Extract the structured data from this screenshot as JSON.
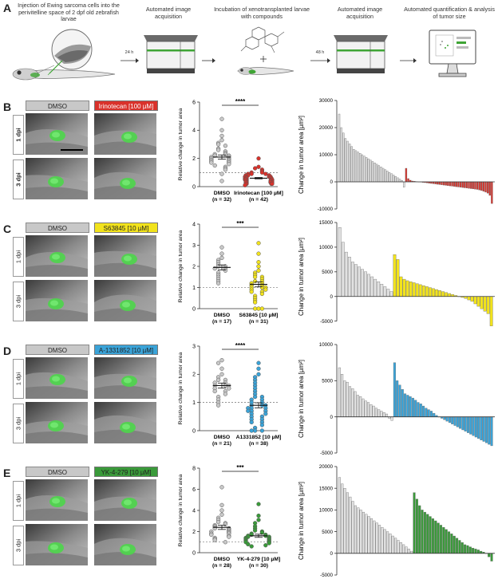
{
  "workflow": {
    "letter": "A",
    "step1": "Injection of Ewing sarcoma cells into the perivitelline space of 2 dpf old zebrafish larvae",
    "step2": "Automated image acquisition",
    "step3": "Incubation of xenotransplanted larvae with compounds",
    "step4": "Automated image acquisition",
    "step5": "Automated quantification & analysis of tumor size",
    "arrow1": "24 h",
    "arrow2": "48 h"
  },
  "colors": {
    "green": "#3fa535",
    "dmso_fill": "#c8c8c8",
    "irinotecan": "#d9322b",
    "s63845": "#f2e31c",
    "a1331852": "#3aa3d8",
    "yk": "#3a9a3a"
  },
  "panels": [
    {
      "letter": "B",
      "control_label": "DMSO",
      "treatment_label": "Irinotecan [100 µM]",
      "row1_label": "1 dpi",
      "row2_label": "3 dpi",
      "bold_rows": true,
      "color": "#d9322b",
      "scatter": {
        "ylabel": "Relative change in tumor area",
        "ymax": 6,
        "yticks": [
          0,
          2,
          4,
          6
        ],
        "sig": "****",
        "group1_name": "DMSO",
        "group1_n": "(n = 32)",
        "group2_name": "Irinotecan [100 µM]",
        "group2_n": "(n = 42)",
        "group1_values": [
          4.8,
          4.0,
          3.6,
          3.3,
          3.1,
          3.0,
          2.9,
          2.7,
          2.6,
          2.5,
          2.4,
          2.3,
          2.3,
          2.2,
          2.2,
          2.1,
          2.1,
          2.0,
          2.0,
          1.9,
          1.9,
          1.8,
          1.8,
          1.7,
          1.7,
          1.6,
          1.5,
          1.4,
          1.3,
          1.2,
          0.9,
          0.4
        ],
        "group2_values": [
          2.0,
          1.4,
          1.3,
          1.2,
          1.1,
          1.0,
          1.0,
          0.9,
          0.9,
          0.9,
          0.8,
          0.8,
          0.8,
          0.7,
          0.7,
          0.7,
          0.7,
          0.6,
          0.6,
          0.6,
          0.6,
          0.6,
          0.5,
          0.5,
          0.5,
          0.5,
          0.5,
          0.4,
          0.4,
          0.4,
          0.4,
          0.4,
          0.3,
          0.3,
          0.3,
          0.3,
          0.3,
          0.2,
          0.2,
          0.2,
          0.2,
          0.1
        ],
        "group1_mean": 2.1,
        "group1_sem": 0.15,
        "group2_mean": 0.6,
        "group2_sem": 0.05
      },
      "waterfall": {
        "ylabel": "Change in tumor area [µm²]",
        "yticks": [
          30000,
          20000,
          10000,
          0,
          -10000
        ],
        "ymin": -10000,
        "ymax": 30000,
        "control_values": [
          25000,
          20000,
          18000,
          16000,
          15000,
          14000,
          13000,
          12000,
          11500,
          11000,
          10500,
          10000,
          9500,
          9000,
          8500,
          8000,
          7500,
          7000,
          6500,
          6000,
          5500,
          5000,
          4500,
          4000,
          3500,
          3000,
          2500,
          2000,
          1500,
          1000,
          500,
          -2000
        ],
        "treatment_values": [
          5000,
          1200,
          600,
          300,
          200,
          100,
          0,
          -100,
          -200,
          -300,
          -400,
          -500,
          -600,
          -700,
          -800,
          -900,
          -1000,
          -1100,
          -1200,
          -1300,
          -1400,
          -1500,
          -1600,
          -1700,
          -1800,
          -1900,
          -2000,
          -2100,
          -2200,
          -2300,
          -2400,
          -2500,
          -2600,
          -2700,
          -2800,
          -3000,
          -3200,
          -3500,
          -3800,
          -4200,
          -5000,
          -8000
        ]
      }
    },
    {
      "letter": "C",
      "control_label": "DMSO",
      "treatment_label": "S63845 [10 µM]",
      "row1_label": "1 dpi",
      "row2_label": "3 dpi",
      "bold_rows": false,
      "color": "#f2e31c",
      "scatter": {
        "ylabel": "Relative change in tumor area",
        "ymax": 4,
        "yticks": [
          0,
          1,
          2,
          3,
          4
        ],
        "sig": "***",
        "group1_name": "DMSO",
        "group1_n": "(n = 17)",
        "group2_name": "S63845 [10 µM]",
        "group2_n": "(n = 31)",
        "group1_values": [
          2.9,
          2.6,
          2.4,
          2.3,
          2.2,
          2.1,
          2.0,
          2.0,
          1.9,
          1.9,
          1.8,
          1.7,
          1.6,
          1.5,
          1.4,
          1.3,
          1.2
        ],
        "group2_values": [
          3.1,
          2.6,
          2.2,
          2.0,
          1.8,
          1.7,
          1.6,
          1.5,
          1.5,
          1.4,
          1.3,
          1.3,
          1.2,
          1.2,
          1.1,
          1.1,
          1.0,
          1.0,
          1.0,
          0.9,
          0.9,
          0.8,
          0.8,
          0.7,
          0.6,
          0.5,
          0.4,
          0.3,
          0.0,
          0.0,
          0.0
        ],
        "group1_mean": 1.95,
        "group1_sem": 0.12,
        "group2_mean": 1.15,
        "group2_sem": 0.12
      },
      "waterfall": {
        "ylabel": "Change in tumor area [µm²]",
        "yticks": [
          15000,
          10000,
          5000,
          0,
          -5000
        ],
        "ymin": -7000,
        "ymax": 15000,
        "control_values": [
          14000,
          11000,
          9000,
          8000,
          7000,
          6500,
          6000,
          5500,
          5000,
          4500,
          4000,
          3500,
          3000,
          2500,
          2000,
          1500,
          1000
        ],
        "treatment_values": [
          8500,
          7500,
          4000,
          3500,
          3200,
          3000,
          2800,
          2600,
          2400,
          2200,
          2000,
          1800,
          1600,
          1400,
          1200,
          1000,
          800,
          600,
          400,
          200,
          0,
          -200,
          -400,
          -700,
          -1000,
          -1500,
          -2000,
          -2500,
          -3000,
          -3500,
          -6000
        ]
      }
    },
    {
      "letter": "D",
      "control_label": "DMSO",
      "treatment_label": "A-1331852 [10 µM]",
      "row1_label": "1 dpi",
      "row2_label": "3 dpi",
      "bold_rows": false,
      "color": "#3aa3d8",
      "scatter": {
        "ylabel": "Relative change in tumor area",
        "ymax": 3,
        "yticks": [
          0,
          1,
          2,
          3
        ],
        "sig": "****",
        "group1_name": "DMSO",
        "group1_n": "(n = 21)",
        "group2_name": "A1331852 [10 µM]",
        "group2_n": "(n = 38)",
        "group1_values": [
          2.5,
          2.4,
          2.2,
          2.0,
          1.9,
          1.8,
          1.8,
          1.7,
          1.7,
          1.6,
          1.6,
          1.6,
          1.5,
          1.5,
          1.4,
          1.4,
          1.3,
          1.2,
          1.1,
          1.0,
          0.9
        ],
        "group2_values": [
          2.4,
          2.2,
          2.0,
          1.9,
          1.8,
          1.7,
          1.6,
          1.5,
          1.4,
          1.3,
          1.2,
          1.2,
          1.1,
          1.1,
          1.0,
          1.0,
          0.9,
          0.9,
          0.9,
          0.8,
          0.8,
          0.8,
          0.7,
          0.7,
          0.7,
          0.6,
          0.6,
          0.5,
          0.5,
          0.4,
          0.4,
          0.3,
          0.3,
          0.2,
          0.1,
          0.0,
          0.0,
          0.0
        ],
        "group1_mean": 1.6,
        "group1_sem": 0.09,
        "group2_mean": 0.9,
        "group2_sem": 0.09
      },
      "waterfall": {
        "ylabel": "Change in tumor area [µm²]",
        "yticks": [
          10000,
          5000,
          0,
          -5000
        ],
        "ymin": -5000,
        "ymax": 10000,
        "control_values": [
          6800,
          5900,
          5000,
          4800,
          4200,
          3900,
          3500,
          3000,
          2800,
          2500,
          2200,
          2000,
          1700,
          1500,
          1200,
          1000,
          800,
          600,
          400,
          -200,
          -500
        ],
        "treatment_values": [
          7500,
          5000,
          4400,
          3800,
          3200,
          3000,
          2800,
          2600,
          2300,
          2000,
          1800,
          1500,
          1200,
          1000,
          800,
          500,
          200,
          0,
          -200,
          -400,
          -600,
          -800,
          -1000,
          -1200,
          -1400,
          -1600,
          -1800,
          -2000,
          -2200,
          -2400,
          -2600,
          -2800,
          -3000,
          -3200,
          -3400,
          -3600,
          -3800,
          -4000
        ]
      }
    },
    {
      "letter": "E",
      "control_label": "DMSO",
      "treatment_label": "YK-4-279 [10 µM]",
      "row1_label": "1 dpi",
      "row2_label": "3 dpi",
      "bold_rows": false,
      "color": "#3a9a3a",
      "scatter": {
        "ylabel": "Relative change in tumor area",
        "ymax": 8,
        "yticks": [
          0,
          2,
          4,
          6,
          8
        ],
        "sig": "***",
        "group1_name": "DMSO",
        "group1_n": "(n = 28)",
        "group2_name": "YK-4-279 [10 µM]",
        "group2_n": "(n = 30)",
        "group1_values": [
          6.2,
          4.5,
          4.0,
          3.6,
          3.3,
          3.1,
          2.9,
          2.8,
          2.7,
          2.6,
          2.5,
          2.4,
          2.3,
          2.3,
          2.2,
          2.1,
          2.0,
          2.0,
          1.9,
          1.8,
          1.8,
          1.7,
          1.6,
          1.5,
          1.4,
          1.3,
          1.2,
          1.0
        ],
        "group2_values": [
          4.6,
          3.5,
          3.1,
          2.8,
          2.5,
          2.3,
          2.1,
          2.0,
          1.9,
          1.8,
          1.7,
          1.7,
          1.6,
          1.6,
          1.5,
          1.5,
          1.4,
          1.4,
          1.3,
          1.3,
          1.2,
          1.2,
          1.1,
          1.1,
          1.0,
          1.0,
          0.9,
          0.8,
          0.7,
          0.6
        ],
        "group1_mean": 2.4,
        "group1_sem": 0.2,
        "group2_mean": 1.6,
        "group2_sem": 0.15
      },
      "waterfall": {
        "ylabel": "Change in tumor area [µm²]",
        "yticks": [
          20000,
          15000,
          10000,
          5000,
          0,
          -5000
        ],
        "ymin": -5000,
        "ymax": 20000,
        "control_values": [
          17500,
          16000,
          15000,
          14000,
          13000,
          12000,
          11000,
          10500,
          10000,
          9500,
          9000,
          8500,
          8000,
          7500,
          7000,
          6500,
          6000,
          5500,
          5000,
          4500,
          4000,
          3500,
          3000,
          2500,
          2000,
          1500,
          1000,
          500
        ],
        "treatment_values": [
          14000,
          12500,
          11000,
          10000,
          9500,
          9000,
          8500,
          8000,
          7500,
          7000,
          6500,
          6000,
          5500,
          5000,
          4500,
          4000,
          3500,
          3000,
          2500,
          2000,
          1800,
          1500,
          1200,
          1000,
          800,
          500,
          300,
          0,
          -800,
          -1800
        ]
      }
    }
  ]
}
